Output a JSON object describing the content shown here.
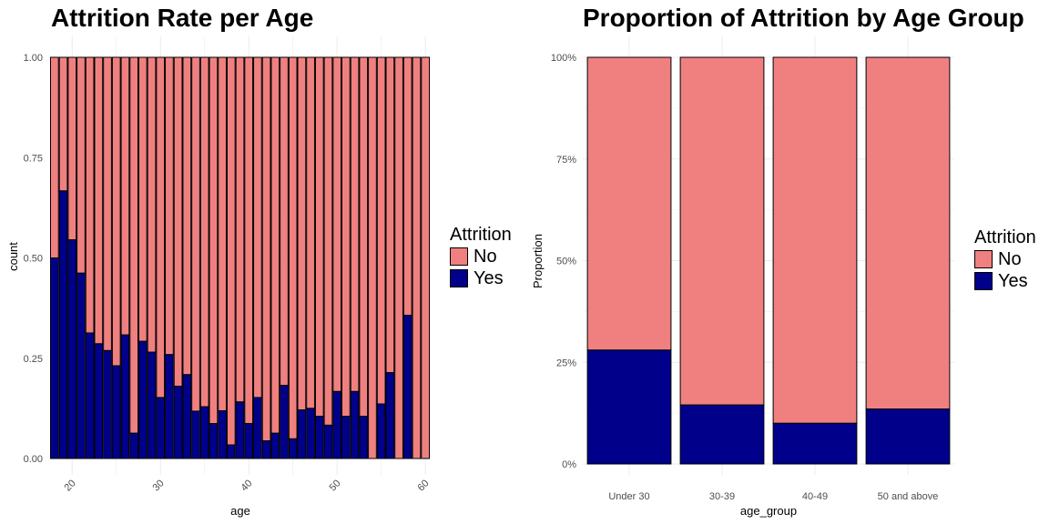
{
  "colors": {
    "no": "#f08080",
    "yes": "#00008b",
    "grid": "#ebebeb",
    "axis_text": "#4d4d4d"
  },
  "chart_data": [
    {
      "type": "bar",
      "stacked": "fill",
      "title": "Attrition Rate per Age",
      "xlabel": "age",
      "ylabel": "count",
      "xlim": [
        17.5,
        60.5
      ],
      "ylim": [
        0,
        1
      ],
      "x_ticks": [
        20,
        30,
        40,
        50,
        60
      ],
      "y_ticks": [
        "0.00",
        "0.25",
        "0.50",
        "0.75",
        "1.00"
      ],
      "grid": true,
      "legend": {
        "title": "Attrition",
        "labels": [
          "No",
          "Yes"
        ],
        "position": "right"
      },
      "x": [
        18,
        19,
        20,
        21,
        22,
        23,
        24,
        25,
        26,
        27,
        28,
        29,
        30,
        31,
        32,
        33,
        34,
        35,
        36,
        37,
        38,
        39,
        40,
        41,
        42,
        43,
        44,
        45,
        46,
        47,
        48,
        49,
        50,
        51,
        52,
        53,
        54,
        55,
        56,
        57,
        58,
        59,
        60
      ],
      "series": [
        {
          "name": "Yes",
          "values": [
            0.5,
            0.667,
            0.545,
            0.462,
            0.313,
            0.286,
            0.269,
            0.231,
            0.308,
            0.063,
            0.292,
            0.265,
            0.152,
            0.259,
            0.18,
            0.209,
            0.118,
            0.129,
            0.087,
            0.119,
            0.034,
            0.141,
            0.087,
            0.152,
            0.044,
            0.063,
            0.182,
            0.049,
            0.121,
            0.125,
            0.105,
            0.083,
            0.167,
            0.105,
            0.167,
            0.105,
            0.0,
            0.136,
            0.214,
            0.0,
            0.357,
            0.0,
            0.0
          ]
        },
        {
          "name": "No",
          "values": [
            0.5,
            0.333,
            0.455,
            0.538,
            0.687,
            0.714,
            0.731,
            0.769,
            0.692,
            0.937,
            0.708,
            0.735,
            0.848,
            0.741,
            0.82,
            0.791,
            0.882,
            0.871,
            0.913,
            0.881,
            0.966,
            0.859,
            0.913,
            0.848,
            0.956,
            0.937,
            0.818,
            0.951,
            0.879,
            0.875,
            0.895,
            0.917,
            0.833,
            0.895,
            0.833,
            0.895,
            1.0,
            0.864,
            0.786,
            1.0,
            0.643,
            1.0,
            1.0
          ]
        }
      ]
    },
    {
      "type": "bar",
      "stacked": "fill",
      "title": "Proportion of Attrition by Age Group",
      "xlabel": "age_group",
      "ylabel": "Proportion",
      "ylim": [
        0,
        1
      ],
      "y_ticks": [
        "0%",
        "25%",
        "50%",
        "75%",
        "100%"
      ],
      "grid": true,
      "legend": {
        "title": "Attrition",
        "labels": [
          "No",
          "Yes"
        ],
        "position": "right"
      },
      "categories": [
        "Under 30",
        "30-39",
        "40-49",
        "50 and above"
      ],
      "series": [
        {
          "name": "Yes",
          "values": [
            0.28,
            0.145,
            0.1,
            0.135
          ]
        },
        {
          "name": "No",
          "values": [
            0.72,
            0.855,
            0.9,
            0.865
          ]
        }
      ]
    }
  ]
}
